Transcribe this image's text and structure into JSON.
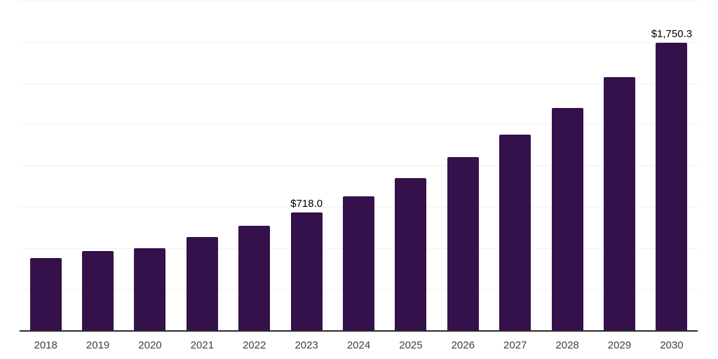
{
  "chart_data": {
    "type": "bar",
    "title": "",
    "xlabel": "",
    "ylabel": "",
    "categories": [
      "2018",
      "2019",
      "2020",
      "2021",
      "2022",
      "2023",
      "2024",
      "2025",
      "2026",
      "2027",
      "2028",
      "2029",
      "2030"
    ],
    "values": [
      441,
      487,
      502,
      570,
      640,
      718.0,
      819,
      929,
      1056,
      1192,
      1354,
      1540,
      1750.3
    ],
    "value_labels": [
      "",
      "",
      "",
      "",
      "",
      "$718.0",
      "",
      "",
      "",
      "",
      "",
      "",
      "$1,750.3"
    ],
    "ylim": [
      0,
      2000
    ],
    "gridline_step": 250,
    "grid": "horizontal",
    "legend_position": "none",
    "y_axis_tick_labels_visible": false,
    "bar_color": "#35114b",
    "axis_line_color": "#2a2a2a",
    "gridline_color": "#f2f2f2",
    "tick_label_color": "#404040",
    "value_label_color": "#000000"
  }
}
